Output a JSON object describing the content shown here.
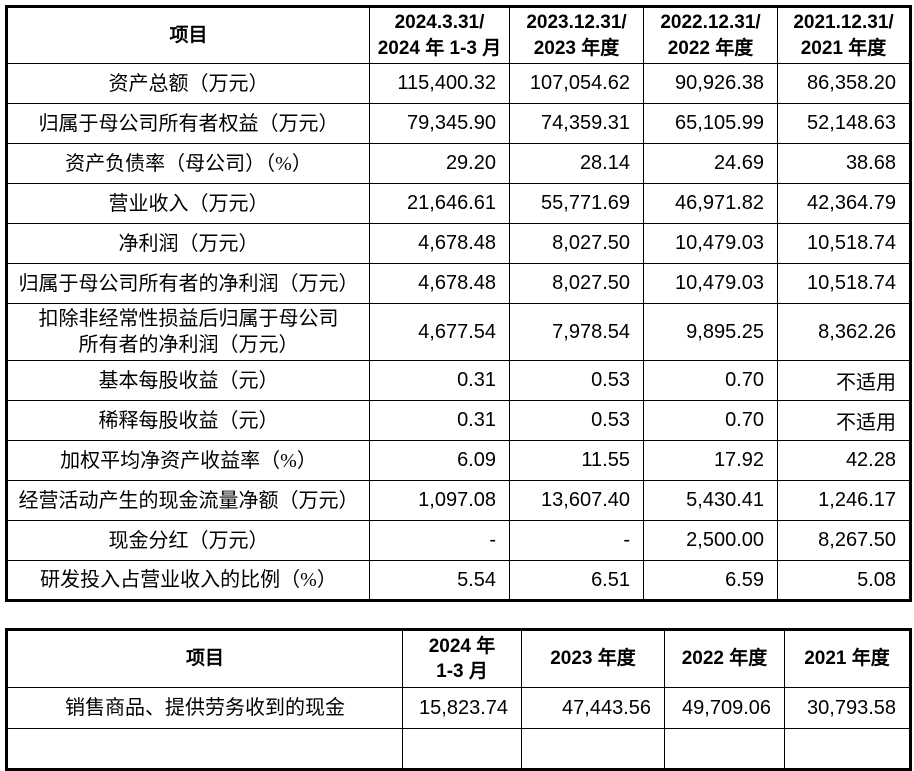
{
  "page": {
    "background_color": "#ffffff",
    "text_color": "#000000",
    "border_color": "#000000"
  },
  "table1": {
    "name": "主要财务数据摘要表",
    "header": {
      "item_label": "项目",
      "columns": [
        "2024.3.31/\n2024 年 1-3 月",
        "2023.12.31/\n2023 年度",
        "2022.12.31/\n2022 年度",
        "2021.12.31/\n2021 年度"
      ]
    },
    "rows": [
      {
        "label": "资产总额（万元）",
        "values": [
          "115,400.32",
          "107,054.62",
          "90,926.38",
          "86,358.20"
        ]
      },
      {
        "label": "归属于母公司所有者权益（万元）",
        "values": [
          "79,345.90",
          "74,359.31",
          "65,105.99",
          "52,148.63"
        ]
      },
      {
        "label": "资产负债率（母公司）（%）",
        "values": [
          "29.20",
          "28.14",
          "24.69",
          "38.68"
        ]
      },
      {
        "label": "营业收入（万元）",
        "values": [
          "21,646.61",
          "55,771.69",
          "46,971.82",
          "42,364.79"
        ]
      },
      {
        "label": "净利润（万元）",
        "values": [
          "4,678.48",
          "8,027.50",
          "10,479.03",
          "10,518.74"
        ]
      },
      {
        "label": "归属于母公司所有者的净利润（万元）",
        "values": [
          "4,678.48",
          "8,027.50",
          "10,479.03",
          "10,518.74"
        ]
      },
      {
        "label": "扣除非经常性损益后归属于母公司\n所有者的净利润（万元）",
        "values": [
          "4,677.54",
          "7,978.54",
          "9,895.25",
          "8,362.26"
        ],
        "tall": true
      },
      {
        "label": "基本每股收益（元）",
        "values": [
          "0.31",
          "0.53",
          "0.70",
          "不适用"
        ]
      },
      {
        "label": "稀释每股收益（元）",
        "values": [
          "0.31",
          "0.53",
          "0.70",
          "不适用"
        ]
      },
      {
        "label": "加权平均净资产收益率（%）",
        "values": [
          "6.09",
          "11.55",
          "17.92",
          "42.28"
        ]
      },
      {
        "label": "经营活动产生的现金流量净额（万元）",
        "values": [
          "1,097.08",
          "13,607.40",
          "5,430.41",
          "1,246.17"
        ]
      },
      {
        "label": "现金分红（万元）",
        "values": [
          "-",
          "-",
          "2,500.00",
          "8,267.50"
        ]
      },
      {
        "label": "研发投入占营业收入的比例（%）",
        "values": [
          "5.54",
          "6.51",
          "6.59",
          "5.08"
        ]
      }
    ]
  },
  "table2": {
    "name": "现金流量摘要表",
    "header": {
      "item_label": "项目",
      "columns": [
        "2024 年\n1-3 月",
        "2023 年度",
        "2022 年度",
        "2021 年度"
      ]
    },
    "rows": [
      {
        "label": "销售商品、提供劳务收到的现金",
        "values": [
          "15,823.74",
          "47,443.56",
          "49,709.06",
          "30,793.58"
        ]
      }
    ]
  }
}
